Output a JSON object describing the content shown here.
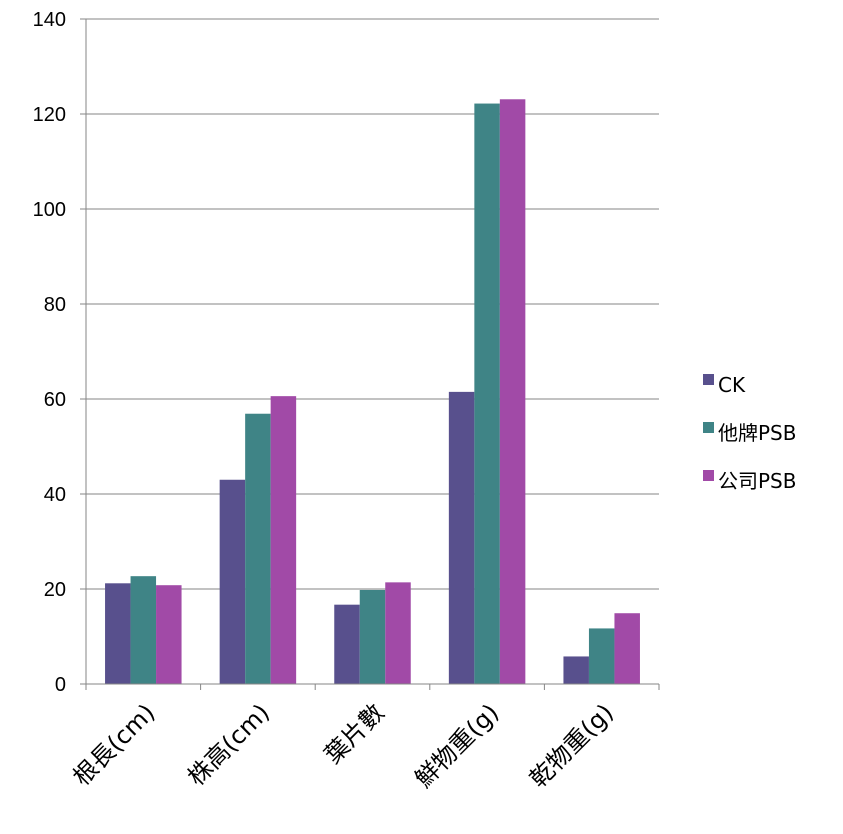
{
  "chart_data": {
    "type": "bar",
    "title": "",
    "xlabel": "",
    "ylabel": "",
    "categories": [
      "根長(cm)",
      "株高(cm)",
      "葉片數",
      "鮮物重(g)",
      "乾物重(g)"
    ],
    "series": [
      {
        "name": "CK",
        "color": "#58508d",
        "values": [
          21.2,
          43.0,
          16.7,
          61.5,
          5.8
        ]
      },
      {
        "name": "他牌PSB",
        "color": "#3f8486",
        "values": [
          22.7,
          56.9,
          19.8,
          122.2,
          11.7
        ]
      },
      {
        "name": "公司PSB",
        "color": "#a14aa7",
        "values": [
          20.8,
          60.6,
          21.4,
          123.1,
          14.9
        ]
      }
    ],
    "ylim": [
      0,
      140
    ],
    "yticks": [
      0,
      20,
      40,
      60,
      80,
      100,
      120,
      140
    ],
    "grid": true,
    "legend_position": "right"
  }
}
